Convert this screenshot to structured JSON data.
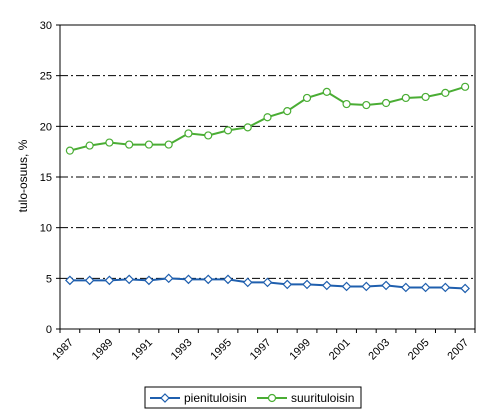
{
  "chart_data": {
    "type": "line",
    "ylabel": "tulo-osuus, %",
    "xlabel": "",
    "title": "",
    "ylim": [
      0,
      30
    ],
    "yticks": [
      0,
      5,
      10,
      15,
      20,
      25,
      30
    ],
    "x": [
      1987,
      1988,
      1989,
      1990,
      1991,
      1992,
      1993,
      1994,
      1995,
      1996,
      1997,
      1998,
      1999,
      2000,
      2001,
      2002,
      2003,
      2004,
      2005,
      2006,
      2007
    ],
    "xtick_labels": [
      "1987",
      "1989",
      "1991",
      "1993",
      "1995",
      "1997",
      "1999",
      "2001",
      "2003",
      "2005",
      "2007"
    ],
    "grid": "horizontal dash-dot",
    "legend_position": "bottom",
    "series": [
      {
        "name": "pienituloisin",
        "color": "#1f5fae",
        "marker": "diamond",
        "values": [
          4.8,
          4.8,
          4.8,
          4.9,
          4.8,
          5.0,
          4.9,
          4.9,
          4.9,
          4.6,
          4.6,
          4.4,
          4.4,
          4.3,
          4.2,
          4.2,
          4.3,
          4.1,
          4.1,
          4.1,
          4.0
        ]
      },
      {
        "name": "suurituloisin",
        "color": "#4aad34",
        "marker": "circle",
        "values": [
          17.6,
          18.1,
          18.4,
          18.2,
          18.2,
          18.2,
          19.3,
          19.1,
          19.6,
          19.9,
          20.9,
          21.5,
          22.8,
          23.4,
          22.2,
          22.1,
          22.3,
          22.8,
          22.9,
          23.3,
          23.9
        ]
      }
    ]
  }
}
